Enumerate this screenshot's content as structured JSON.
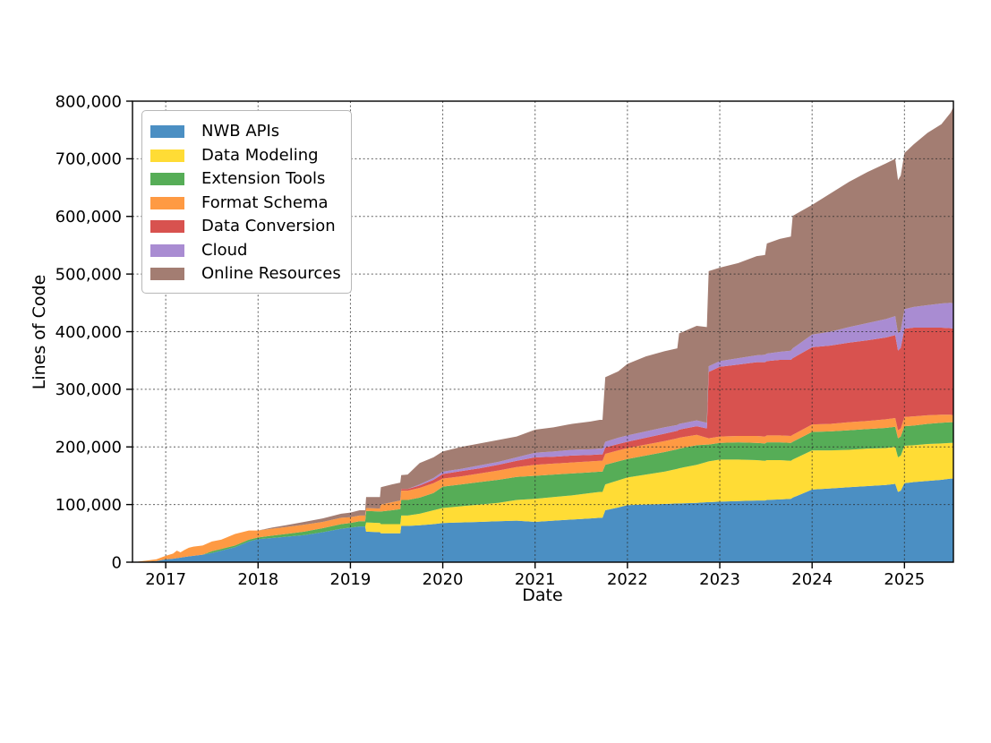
{
  "figure": {
    "background": "#ffffff",
    "grid_color": "#2a2a2a",
    "axis_color": "#000000"
  },
  "chart_data": {
    "type": "area",
    "stacked": true,
    "title": "",
    "xlabel": "Date",
    "ylabel": "Lines of Code",
    "grid": true,
    "legend_position": "upper-left",
    "xlim": [
      2016.64,
      2025.53
    ],
    "ylim": [
      0,
      800000
    ],
    "x_ticks": [
      {
        "value": 2017,
        "label": "2017"
      },
      {
        "value": 2018,
        "label": "2018"
      },
      {
        "value": 2019,
        "label": "2019"
      },
      {
        "value": 2020,
        "label": "2020"
      },
      {
        "value": 2021,
        "label": "2021"
      },
      {
        "value": 2022,
        "label": "2022"
      },
      {
        "value": 2023,
        "label": "2023"
      },
      {
        "value": 2024,
        "label": "2024"
      },
      {
        "value": 2025,
        "label": "2025"
      }
    ],
    "y_ticks": [
      {
        "value": 0,
        "label": "0"
      },
      {
        "value": 100000,
        "label": "100,000"
      },
      {
        "value": 200000,
        "label": "200,000"
      },
      {
        "value": 300000,
        "label": "300,000"
      },
      {
        "value": 400000,
        "label": "400,000"
      },
      {
        "value": 500000,
        "label": "500,000"
      },
      {
        "value": 600000,
        "label": "600,000"
      },
      {
        "value": 700000,
        "label": "700,000"
      },
      {
        "value": 800000,
        "label": "800,000"
      }
    ],
    "x": [
      2016.7,
      2016.8,
      2016.9,
      2017.0,
      2017.08,
      2017.12,
      2017.16,
      2017.2,
      2017.25,
      2017.3,
      2017.4,
      2017.5,
      2017.6,
      2017.75,
      2017.9,
      2018.0,
      2018.15,
      2018.3,
      2018.5,
      2018.7,
      2018.9,
      2019.0,
      2019.1,
      2019.16,
      2019.17,
      2019.32,
      2019.33,
      2019.45,
      2019.54,
      2019.55,
      2019.62,
      2019.75,
      2019.9,
      2020.0,
      2020.2,
      2020.4,
      2020.6,
      2020.8,
      2021.0,
      2021.2,
      2021.4,
      2021.6,
      2021.7,
      2021.73,
      2021.76,
      2021.9,
      2022.0,
      2022.2,
      2022.4,
      2022.54,
      2022.56,
      2022.75,
      2022.86,
      2022.88,
      2023.0,
      2023.2,
      2023.4,
      2023.49,
      2023.51,
      2023.65,
      2023.77,
      2023.79,
      2024.0,
      2024.2,
      2024.4,
      2024.6,
      2024.8,
      2024.9,
      2024.93,
      2024.96,
      2025.0,
      2025.1,
      2025.25,
      2025.4,
      2025.5,
      2025.53
    ],
    "series": [
      {
        "name": "NWB APIs",
        "color": "#4b8fc3",
        "values": [
          500,
          1000,
          2000,
          5000,
          6000,
          7000,
          8000,
          9000,
          10000,
          11000,
          13000,
          16000,
          20000,
          26000,
          36000,
          40000,
          42000,
          44000,
          47000,
          52000,
          58000,
          60000,
          62000,
          62000,
          53000,
          52000,
          50000,
          50000,
          50000,
          63000,
          63000,
          64000,
          66000,
          68000,
          69000,
          70000,
          71000,
          72000,
          70000,
          72000,
          74000,
          76000,
          77000,
          77000,
          90000,
          95000,
          99000,
          100000,
          101000,
          102000,
          102000,
          103000,
          104000,
          104000,
          105000,
          106000,
          107000,
          107000,
          108000,
          109000,
          110000,
          112000,
          126000,
          128000,
          130000,
          132000,
          134000,
          136000,
          122000,
          124000,
          137000,
          139000,
          141000,
          143000,
          145000,
          145000
        ]
      },
      {
        "name": "Data Modeling",
        "color": "#ffdc35",
        "values": [
          0,
          0,
          0,
          0,
          0,
          0,
          0,
          0,
          0,
          0,
          0,
          0,
          0,
          0,
          0,
          0,
          0,
          0,
          0,
          0,
          0,
          0,
          0,
          0,
          16000,
          16000,
          16000,
          16000,
          16000,
          18000,
          18000,
          20000,
          24000,
          26000,
          28000,
          30000,
          32000,
          36000,
          40000,
          41000,
          42000,
          44000,
          45000,
          45000,
          45000,
          47000,
          48000,
          52000,
          56000,
          60000,
          61000,
          66000,
          70000,
          71000,
          73000,
          72000,
          70000,
          69000,
          69000,
          68000,
          66000,
          66000,
          68000,
          66000,
          65000,
          65000,
          64000,
          64000,
          60000,
          61000,
          65000,
          64000,
          64000,
          63000,
          62000,
          62000
        ]
      },
      {
        "name": "Extension Tools",
        "color": "#56ad57",
        "values": [
          0,
          0,
          0,
          0,
          0,
          0,
          0,
          0,
          0,
          0,
          0,
          3000,
          3000,
          3000,
          3000,
          3000,
          4000,
          5000,
          6000,
          7000,
          8000,
          8000,
          9000,
          9000,
          20000,
          20000,
          22000,
          24000,
          26000,
          27000,
          27000,
          28000,
          30000,
          37000,
          38000,
          39000,
          40000,
          40000,
          40000,
          39000,
          38000,
          36000,
          35000,
          35000,
          34000,
          33000,
          32000,
          33000,
          34000,
          34000,
          34000,
          34000,
          30000,
          29000,
          29000,
          30000,
          30000,
          30000,
          31000,
          31000,
          31000,
          31000,
          32000,
          33000,
          34000,
          34000,
          35000,
          35000,
          33000,
          33000,
          34000,
          34000,
          35000,
          36000,
          36000,
          36000
        ]
      },
      {
        "name": "Format Schema",
        "color": "#fe9a43",
        "values": [
          500,
          2000,
          3000,
          6000,
          9000,
          13000,
          9000,
          12000,
          15000,
          16000,
          16000,
          17000,
          16000,
          20000,
          16000,
          12000,
          12000,
          12000,
          12000,
          11000,
          11000,
          10000,
          10000,
          10000,
          5000,
          5000,
          12000,
          14000,
          15000,
          16000,
          16000,
          17000,
          17000,
          14000,
          14000,
          15000,
          16000,
          17000,
          19000,
          19000,
          19000,
          19000,
          19000,
          19000,
          19000,
          19000,
          19000,
          19000,
          19000,
          19000,
          19000,
          18000,
          12000,
          11000,
          11000,
          11000,
          12000,
          12000,
          12000,
          12000,
          12000,
          12000,
          13000,
          13000,
          14000,
          14000,
          15000,
          15000,
          14000,
          14000,
          16000,
          16000,
          15000,
          14000,
          13000,
          12000
        ]
      },
      {
        "name": "Data Conversion",
        "color": "#d8524f",
        "values": [
          0,
          0,
          0,
          0,
          0,
          0,
          0,
          0,
          0,
          0,
          0,
          0,
          0,
          0,
          0,
          0,
          0,
          0,
          0,
          0,
          0,
          0,
          0,
          0,
          0,
          0,
          0,
          0,
          0,
          3000,
          3000,
          4000,
          6000,
          8000,
          9000,
          9000,
          10000,
          11000,
          13000,
          12000,
          12000,
          11000,
          11000,
          11000,
          11000,
          11000,
          11000,
          12000,
          13000,
          13000,
          14000,
          15000,
          16000,
          115000,
          121000,
          124000,
          128000,
          129000,
          129000,
          131000,
          132000,
          133000,
          134000,
          136000,
          138000,
          140000,
          142000,
          144000,
          138000,
          140000,
          153000,
          154000,
          152000,
          151000,
          150000,
          150000
        ]
      },
      {
        "name": "Cloud",
        "color": "#a98cd2",
        "values": [
          0,
          0,
          0,
          0,
          0,
          0,
          0,
          0,
          0,
          0,
          0,
          0,
          0,
          0,
          0,
          0,
          0,
          0,
          0,
          0,
          0,
          0,
          0,
          0,
          0,
          0,
          0,
          0,
          0,
          0,
          0,
          2000,
          3000,
          4000,
          4000,
          5000,
          5000,
          6000,
          8000,
          9000,
          10000,
          10000,
          10000,
          10000,
          10000,
          11000,
          11000,
          11000,
          11000,
          10000,
          10000,
          10000,
          10000,
          10000,
          10000,
          11000,
          12000,
          13000,
          13000,
          14000,
          16000,
          17000,
          22000,
          24000,
          27000,
          30000,
          32000,
          33000,
          30000,
          31000,
          34000,
          36000,
          39000,
          42000,
          44000,
          44000
        ]
      },
      {
        "name": "Online Resources",
        "color": "#a37d72",
        "values": [
          0,
          0,
          0,
          0,
          0,
          0,
          0,
          0,
          0,
          0,
          0,
          0,
          0,
          0,
          0,
          0,
          2000,
          3000,
          5000,
          6000,
          7000,
          8000,
          9000,
          9000,
          19000,
          20000,
          30000,
          31000,
          31000,
          24000,
          25000,
          37000,
          36000,
          35000,
          38000,
          38000,
          38000,
          36000,
          40000,
          42000,
          45000,
          48000,
          50000,
          50000,
          112000,
          115000,
          124000,
          130000,
          132000,
          133000,
          157000,
          164000,
          166000,
          165000,
          162000,
          165000,
          172000,
          173000,
          191000,
          196000,
          198000,
          230000,
          225000,
          240000,
          252000,
          262000,
          270000,
          273000,
          266000,
          268000,
          271000,
          282000,
          299000,
          311000,
          330000,
          341000
        ]
      }
    ]
  }
}
